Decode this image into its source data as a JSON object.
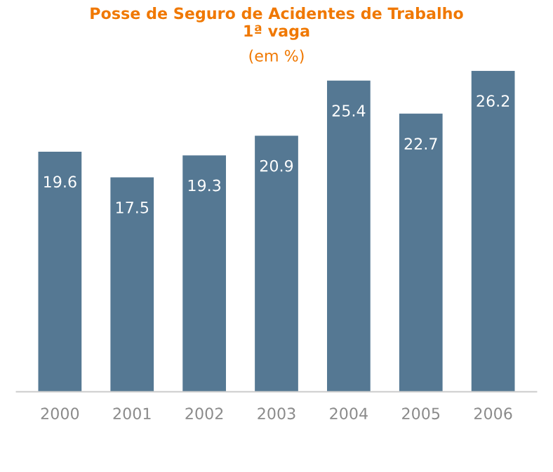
{
  "chart_data": {
    "type": "bar",
    "title": "Posse de Seguro de Acidentes de Trabalho\n1ª vaga",
    "subtitle": "(em %)",
    "categories": [
      "2000",
      "2001",
      "2002",
      "2003",
      "2004",
      "2005",
      "2006"
    ],
    "values": [
      19.6,
      17.5,
      19.3,
      20.9,
      25.4,
      22.7,
      26.2
    ],
    "color": "#557893",
    "data_labels": true,
    "grid": false
  }
}
